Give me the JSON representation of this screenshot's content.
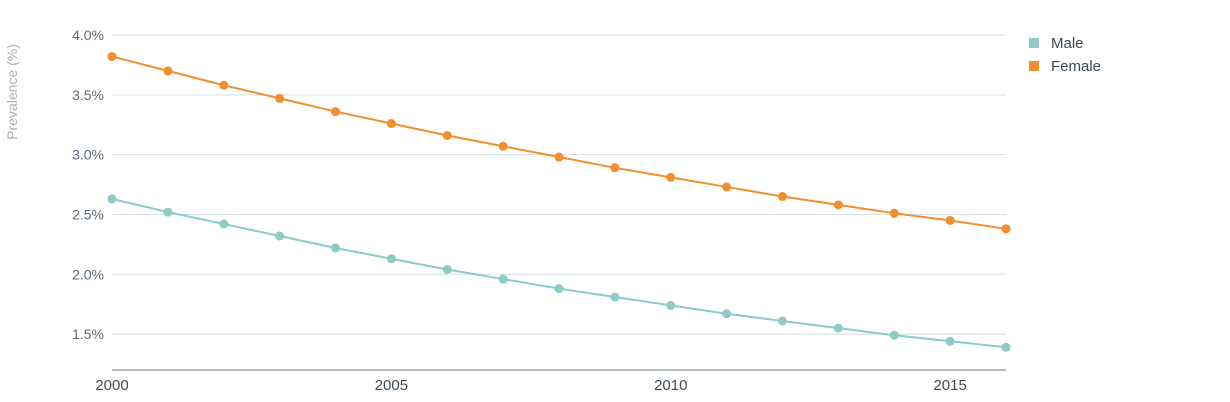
{
  "chart_data": {
    "type": "line",
    "title": "",
    "xlabel": "",
    "ylabel": "Prevalence (%)",
    "x": [
      2000,
      2001,
      2002,
      2003,
      2004,
      2005,
      2006,
      2007,
      2008,
      2009,
      2010,
      2011,
      2012,
      2013,
      2014,
      2015,
      2016
    ],
    "xlim": [
      2000,
      2016
    ],
    "ylim": [
      1.2,
      4.0
    ],
    "x_ticks": [
      {
        "value": 2000,
        "label": "2000"
      },
      {
        "value": 2005,
        "label": "2005"
      },
      {
        "value": 2010,
        "label": "2010"
      },
      {
        "value": 2015,
        "label": "2015"
      }
    ],
    "y_ticks": [
      {
        "value": 1.5,
        "label": "1.5%"
      },
      {
        "value": 2.0,
        "label": "2.0%"
      },
      {
        "value": 2.5,
        "label": "2.5%"
      },
      {
        "value": 3.0,
        "label": "3.0%"
      },
      {
        "value": 3.5,
        "label": "3.5%"
      },
      {
        "value": 4.0,
        "label": "4.0%"
      }
    ],
    "grid": true,
    "legend_position": "top-right",
    "series": [
      {
        "name": "Male",
        "color": "#8ecac8",
        "values": [
          2.63,
          2.52,
          2.42,
          2.32,
          2.22,
          2.13,
          2.04,
          1.96,
          1.88,
          1.81,
          1.74,
          1.67,
          1.61,
          1.55,
          1.49,
          1.44,
          1.39
        ]
      },
      {
        "name": "Female",
        "color": "#f28e2c",
        "values": [
          3.82,
          3.7,
          3.58,
          3.47,
          3.36,
          3.26,
          3.16,
          3.07,
          2.98,
          2.89,
          2.81,
          2.73,
          2.65,
          2.58,
          2.51,
          2.45,
          2.38
        ]
      }
    ]
  }
}
